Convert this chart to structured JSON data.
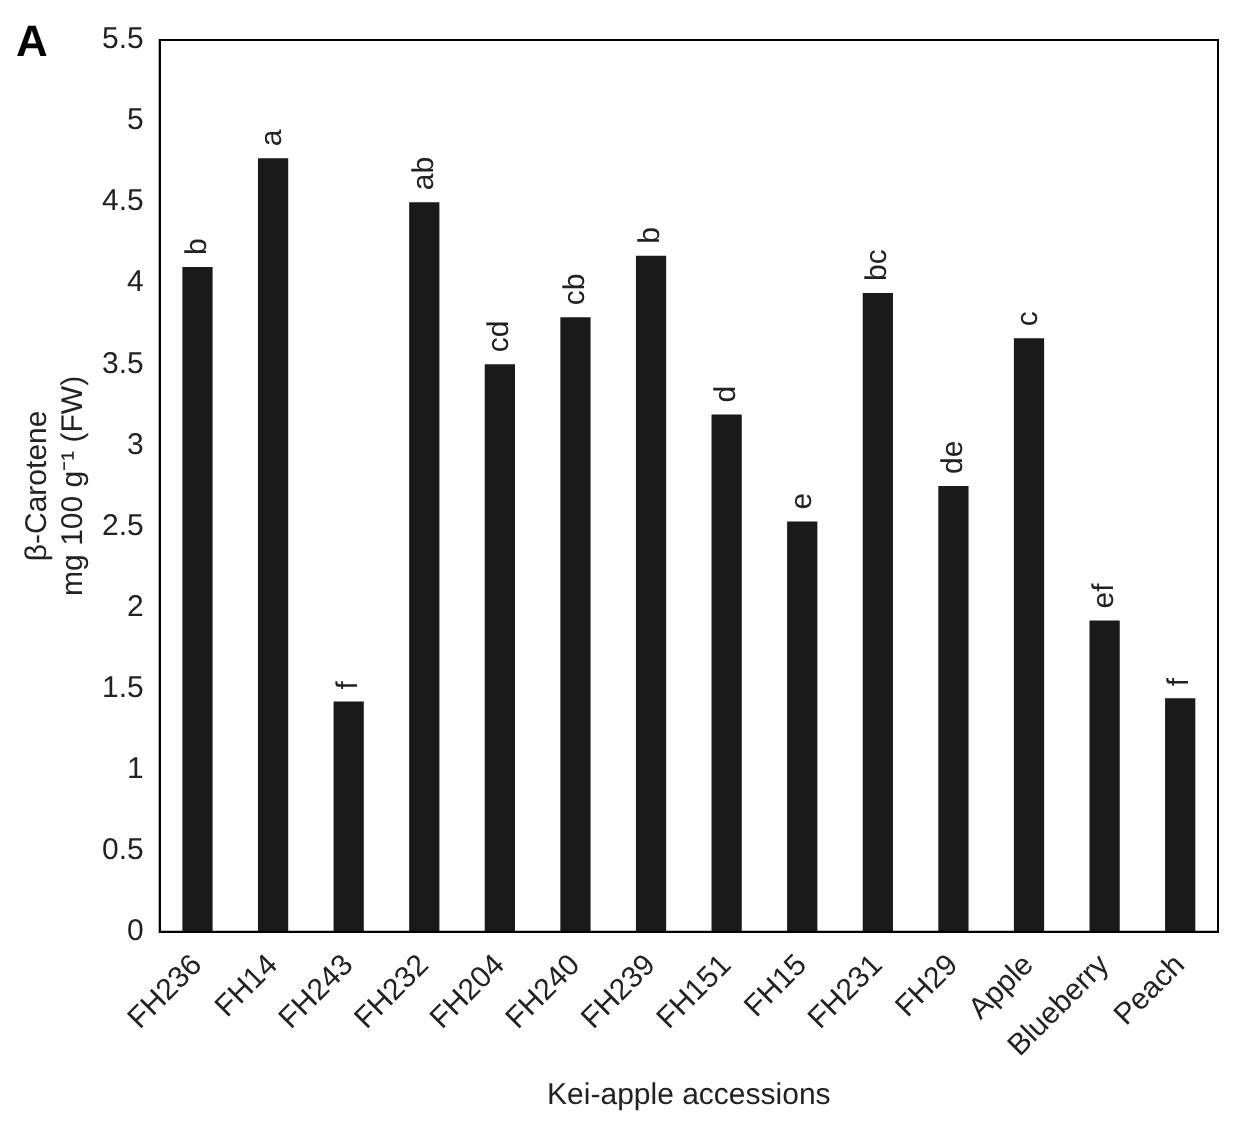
{
  "chart_data": {
    "type": "bar",
    "xlabel": "Kei-apple accessions",
    "ylabel": [
      "β-Carotene",
      "mg 100 g⁻¹ (FW)"
    ],
    "categories": [
      "FH236",
      "FH14",
      "FH243",
      "FH232",
      "FH204",
      "FH240",
      "FH239",
      "FH151",
      "FH15",
      "FH231",
      "FH29",
      "Apple",
      "Blueberry",
      "Peach"
    ],
    "values": [
      4.1,
      4.77,
      1.42,
      4.5,
      3.5,
      3.79,
      4.17,
      3.19,
      2.53,
      3.94,
      2.75,
      3.66,
      1.92,
      1.44
    ],
    "value_labels": [
      "b",
      "a",
      "f",
      "ab",
      "cd",
      "cb",
      "b",
      "d",
      "e",
      "bc",
      "de",
      "c",
      "ef",
      "f"
    ],
    "color": "#1a1a1a",
    "ylim": [
      0,
      5.5
    ],
    "yticks": [
      0,
      0.5,
      1,
      1.5,
      2,
      2.5,
      3,
      3.5,
      4,
      4.5,
      5,
      5.5
    ],
    "annotations": [
      "A"
    ],
    "grid": false,
    "legend": false
  }
}
